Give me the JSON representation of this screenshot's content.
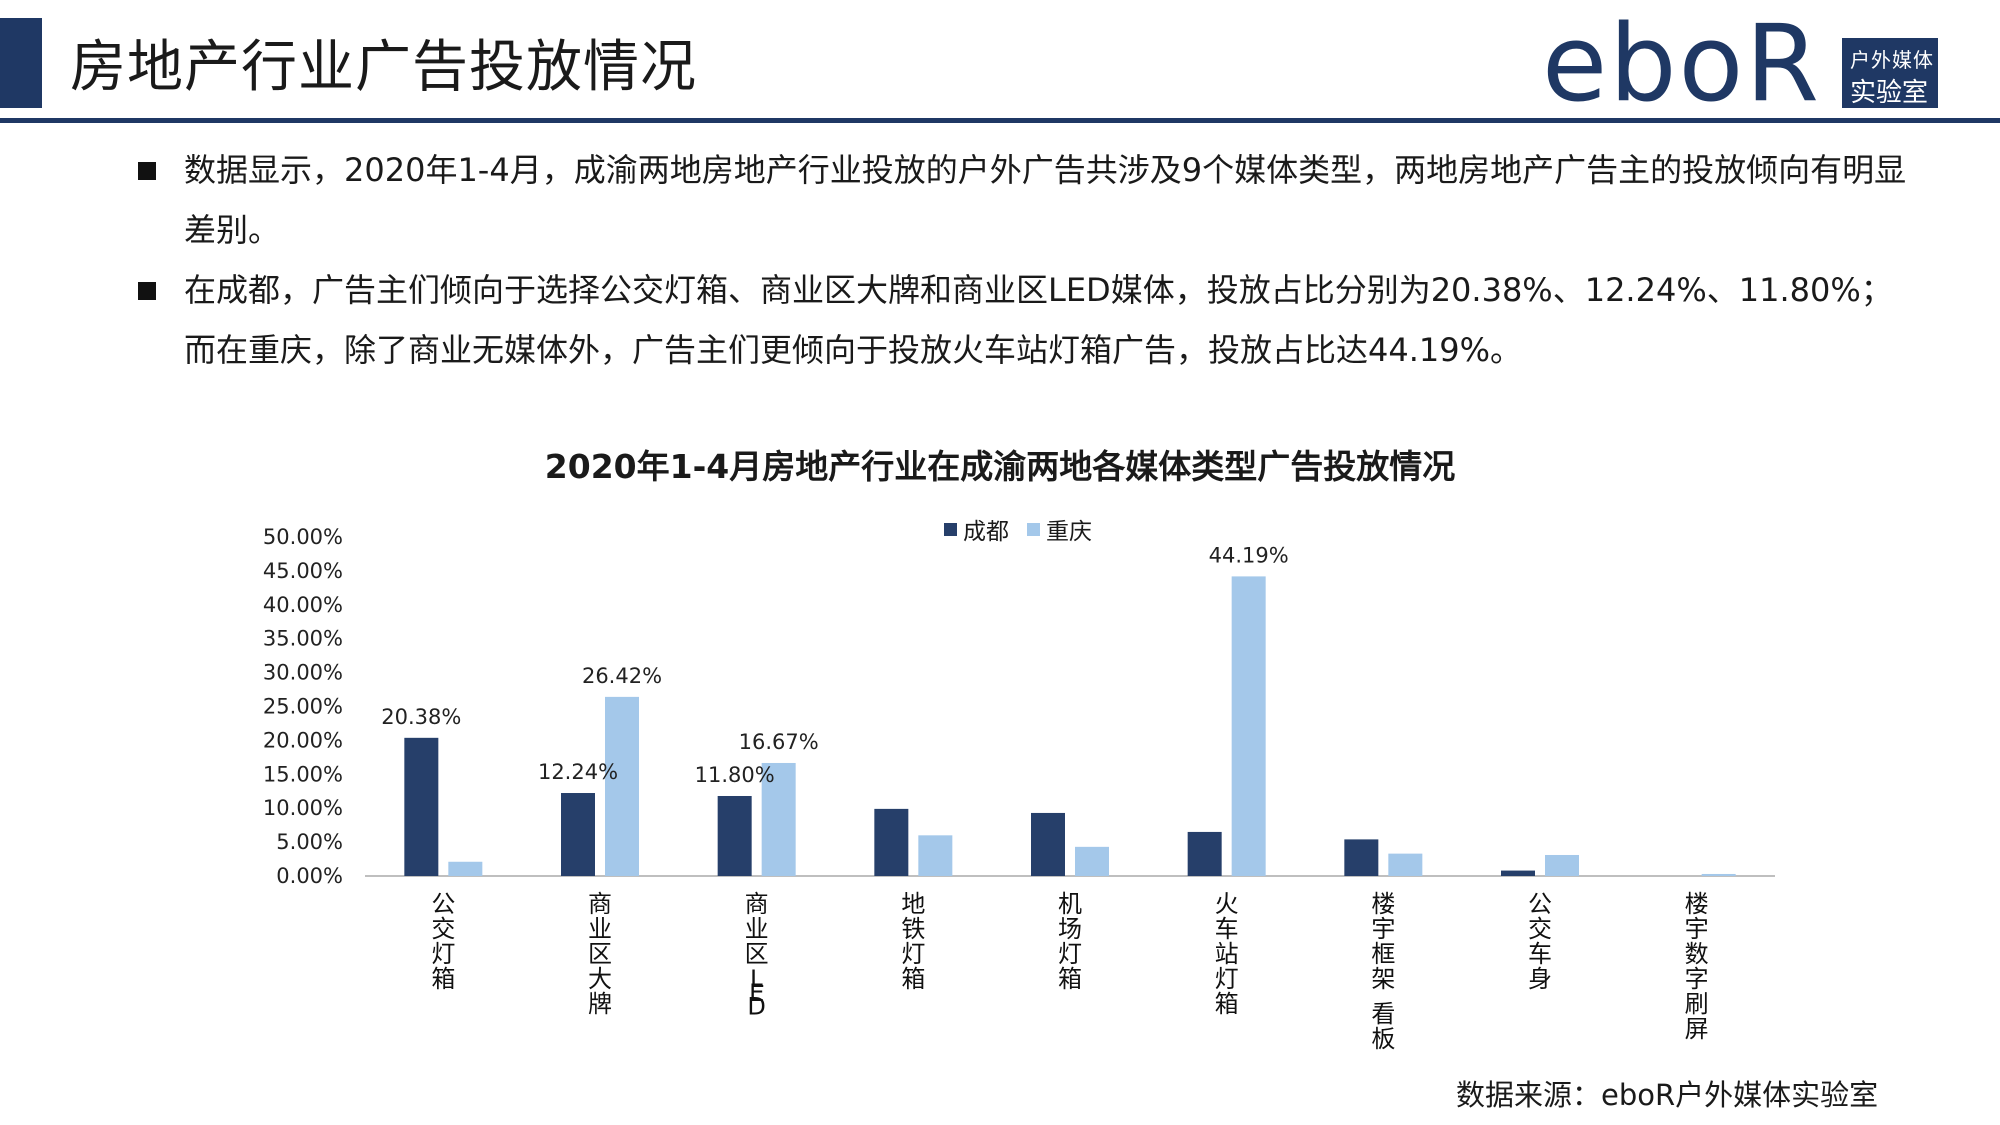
{
  "header": {
    "title": "房地产行业广告投放情况",
    "logo_text": "eboR",
    "logo_sub1": "户外媒体",
    "logo_sub2": "实验室"
  },
  "bullets": [
    "数据显示，2020年1-4月，成渝两地房地产行业投放的户外广告共涉及9个媒体类型，两地房地产广告主的投放倾向有明显差别。",
    "在成都，广告主们倾向于选择公交灯箱、商业区大牌和商业区LED媒体，投放占比分别为20.38%、12.24%、11.80%；而在重庆，除了商业无媒体外，广告主们更倾向于投放火车站灯箱广告，投放占比达44.19%。"
  ],
  "chart_data": {
    "type": "bar",
    "title": "2020年1-4月房地产行业在成渝两地各媒体类型广告投放情况",
    "categories": [
      "公交灯箱",
      "商业区大牌",
      "商业区LED",
      "地铁灯箱",
      "机场灯箱",
      "火车站灯箱",
      "楼宇框架 看板",
      "公交车身",
      "楼宇数字刷屏"
    ],
    "series": [
      {
        "name": "成都",
        "color": "#263f6a",
        "values": [
          20.38,
          12.24,
          11.8,
          9.9,
          9.3,
          6.5,
          5.4,
          0.8,
          0.0
        ]
      },
      {
        "name": "重庆",
        "color": "#a4c8ea",
        "values": [
          2.1,
          26.42,
          16.67,
          6.0,
          4.3,
          44.19,
          3.3,
          3.1,
          0.3
        ]
      }
    ],
    "data_labels": [
      {
        "series": 0,
        "index": 0,
        "text": "20.38%"
      },
      {
        "series": 0,
        "index": 1,
        "text": "12.24%"
      },
      {
        "series": 0,
        "index": 2,
        "text": "11.80%"
      },
      {
        "series": 1,
        "index": 1,
        "text": "26.42%"
      },
      {
        "series": 1,
        "index": 2,
        "text": "16.67%"
      },
      {
        "series": 1,
        "index": 5,
        "text": "44.19%"
      }
    ],
    "yticks": [
      "0.00%",
      "5.00%",
      "10.00%",
      "15.00%",
      "20.00%",
      "25.00%",
      "30.00%",
      "35.00%",
      "40.00%",
      "45.00%",
      "50.00%"
    ],
    "ylim": [
      0,
      50
    ],
    "legend_position": "top",
    "grid": false
  },
  "source": "数据来源：eboR户外媒体实验室"
}
